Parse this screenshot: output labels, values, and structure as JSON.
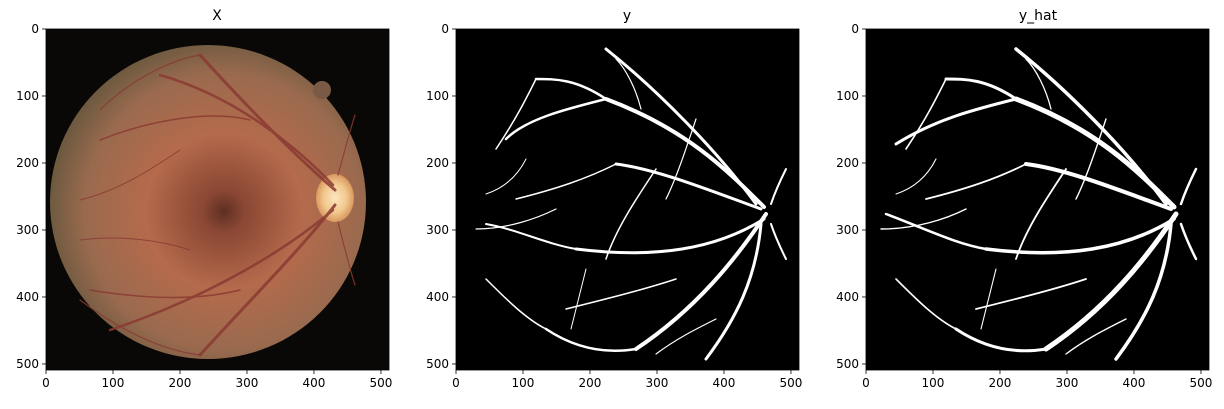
{
  "figure": {
    "panels": [
      {
        "title": "X",
        "kind": "fundus-photo",
        "xticks": [
          "0",
          "100",
          "200",
          "300",
          "400",
          "500"
        ],
        "yticks": [
          "0",
          "100",
          "200",
          "300",
          "400",
          "500"
        ]
      },
      {
        "title": "y",
        "kind": "vessel-mask",
        "xticks": [
          "0",
          "100",
          "200",
          "300",
          "400",
          "500"
        ],
        "yticks": [
          "0",
          "100",
          "200",
          "300",
          "400",
          "500"
        ]
      },
      {
        "title": "y_hat",
        "kind": "vessel-mask",
        "xticks": [
          "0",
          "100",
          "200",
          "300",
          "400",
          "500"
        ],
        "yticks": [
          "0",
          "100",
          "200",
          "300",
          "400",
          "500"
        ]
      }
    ],
    "colors": {
      "fundus_outer": "#6e4736",
      "fundus_mid": "#b56a4c",
      "fundus_center": "#5a2f22",
      "optic_disc": "#f2d3a0",
      "vessel_red": "#8a3a33",
      "mask_bg": "#000000",
      "mask_vessel": "#ffffff"
    }
  }
}
